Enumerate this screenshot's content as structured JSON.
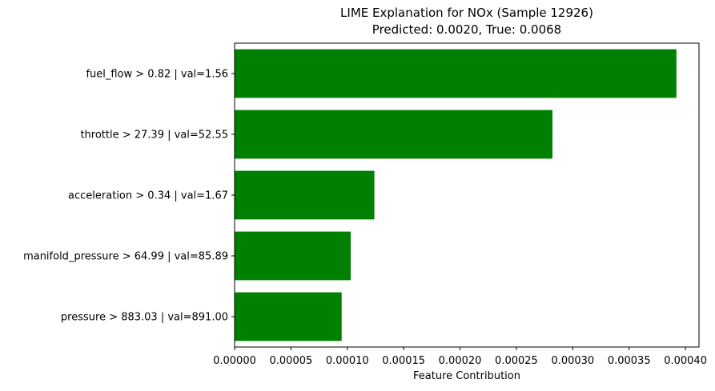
{
  "chart_data": {
    "type": "bar",
    "orientation": "horizontal",
    "title_line1": "LIME Explanation for NOx (Sample 12926)",
    "title_line2": "Predicted: 0.0020, True: 0.0068",
    "xlabel": "Feature Contribution",
    "ylabel": "",
    "categories": [
      "fuel_flow > 0.82 | val=1.56",
      "throttle > 27.39 | val=52.55",
      "acceleration > 0.34 | val=1.67",
      "manifold_pressure > 64.99 | val=85.89",
      "pressure > 883.03 | val=891.00"
    ],
    "values": [
      0.000392,
      0.000282,
      0.000124,
      0.000103,
      9.5e-05
    ],
    "xlim": [
      0,
      0.000412
    ],
    "xticks": [
      "0.00000",
      "0.00005",
      "0.00010",
      "0.00015",
      "0.00020",
      "0.00025",
      "0.00030",
      "0.00035",
      "0.00040"
    ],
    "xtick_values": [
      0,
      5e-05,
      0.0001,
      0.00015,
      0.0002,
      0.00025,
      0.0003,
      0.00035,
      0.0004
    ],
    "bar_color": "#008000",
    "grid": false,
    "legend": "none"
  }
}
